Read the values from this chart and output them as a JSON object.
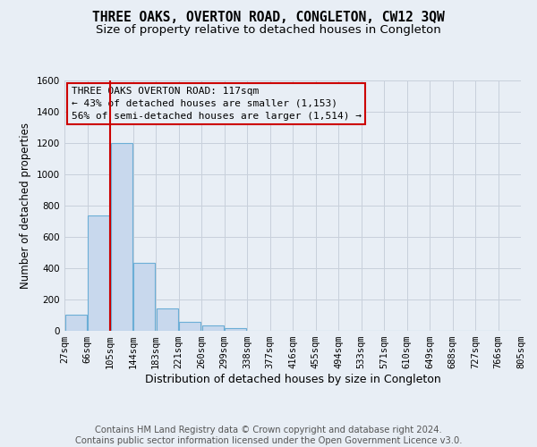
{
  "title": "THREE OAKS, OVERTON ROAD, CONGLETON, CW12 3QW",
  "subtitle": "Size of property relative to detached houses in Congleton",
  "xlabel": "Distribution of detached houses by size in Congleton",
  "ylabel": "Number of detached properties",
  "footer_line1": "Contains HM Land Registry data © Crown copyright and database right 2024.",
  "footer_line2": "Contains public sector information licensed under the Open Government Licence v3.0.",
  "bin_labels": [
    "27sqm",
    "66sqm",
    "105sqm",
    "144sqm",
    "183sqm",
    "221sqm",
    "260sqm",
    "299sqm",
    "338sqm",
    "377sqm",
    "416sqm",
    "455sqm",
    "494sqm",
    "533sqm",
    "571sqm",
    "610sqm",
    "649sqm",
    "688sqm",
    "727sqm",
    "766sqm",
    "805sqm"
  ],
  "bar_heights": [
    105,
    735,
    1200,
    435,
    145,
    55,
    32,
    18,
    0,
    0,
    0,
    0,
    0,
    0,
    0,
    0,
    0,
    0,
    0,
    0
  ],
  "bar_color": "#c8d8ed",
  "bar_edgecolor": "#6baed6",
  "vline_x_left_edge": 1.5,
  "vline_color": "#cc0000",
  "annotation_text": "THREE OAKS OVERTON ROAD: 117sqm\n← 43% of detached houses are smaller (1,153)\n56% of semi-detached houses are larger (1,514) →",
  "annotation_box_edgecolor": "#cc0000",
  "ylim": [
    0,
    1600
  ],
  "yticks": [
    0,
    200,
    400,
    600,
    800,
    1000,
    1200,
    1400,
    1600
  ],
  "background_color": "#e8eef5",
  "grid_color": "#c8d0db",
  "title_fontsize": 10.5,
  "subtitle_fontsize": 9.5,
  "ylabel_fontsize": 8.5,
  "xlabel_fontsize": 9,
  "tick_fontsize": 7.5,
  "footer_fontsize": 7.2,
  "ann_fontsize": 8.0
}
